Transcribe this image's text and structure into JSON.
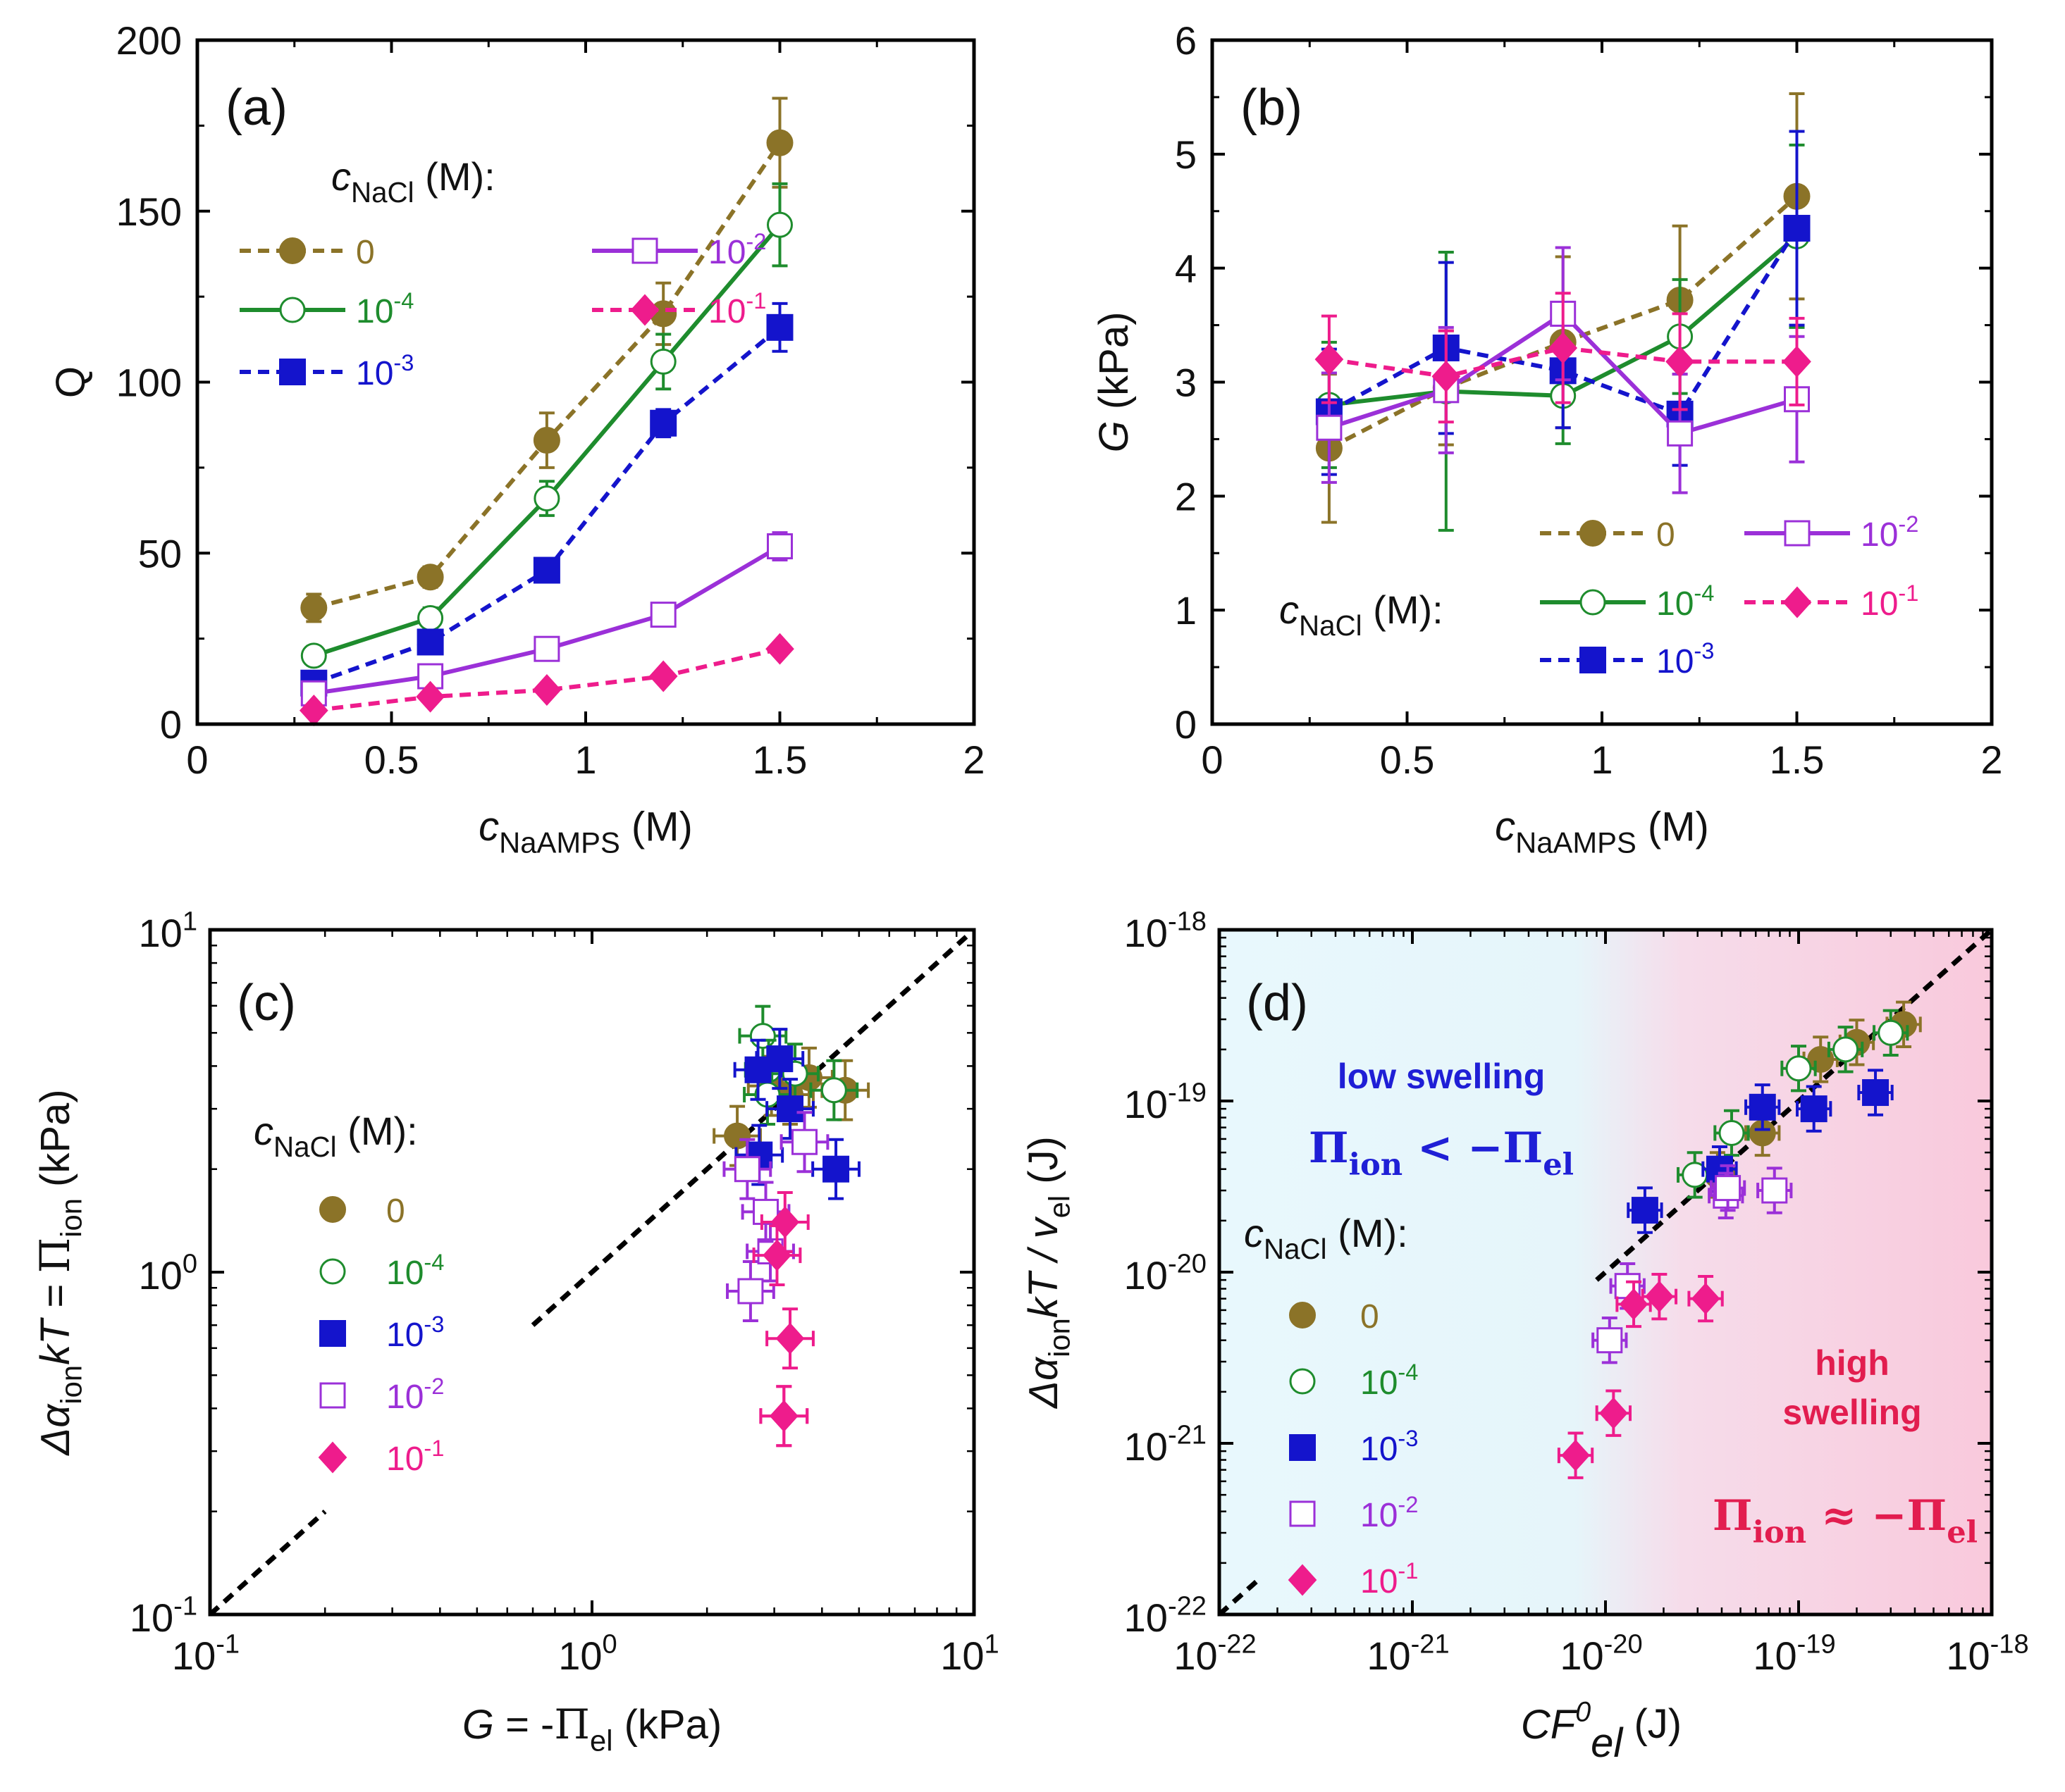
{
  "colors": {
    "s0": "#8B7328",
    "s1": "#1E8C2D",
    "s2": "#1414CC",
    "s3": "#9B30D8",
    "s4": "#EE1C8C",
    "blue_text": "#1F1FD6",
    "red_text": "#E21D4F"
  },
  "chart_data": [
    {
      "type": "line",
      "panel": "a",
      "panel_label": "(a)",
      "xlabel": {
        "main": "c",
        "sub": "NaAMPS",
        "unit": " (M)"
      },
      "ylabel": "Q",
      "xlim": [
        0,
        2
      ],
      "ylim": [
        0,
        200
      ],
      "xticks": [
        "0",
        "0.5",
        "1",
        "1.5",
        "2"
      ],
      "yticks": [
        "0",
        "50",
        "100",
        "150",
        "200"
      ],
      "legend_title": {
        "main": "c",
        "sub": "NaCl",
        "unit": " (M):"
      },
      "x": [
        0.3,
        0.6,
        0.9,
        1.2,
        1.5
      ],
      "series": [
        {
          "name": "0",
          "values": [
            34,
            43,
            83,
            120,
            170
          ],
          "err": [
            4,
            3,
            8,
            9,
            13
          ]
        },
        {
          "name": "10^-4",
          "values": [
            20,
            31,
            66,
            106,
            146
          ],
          "err": [
            2,
            3,
            5,
            8,
            12
          ]
        },
        {
          "name": "10^-3",
          "values": [
            12,
            24,
            45,
            88,
            116
          ],
          "err": [
            2,
            2,
            2,
            4,
            7
          ]
        },
        {
          "name": "10^-2",
          "values": [
            9,
            14,
            22,
            32,
            52
          ],
          "err": [
            1,
            1,
            1,
            1,
            4
          ]
        },
        {
          "name": "10^-1",
          "values": [
            4,
            8,
            10,
            14,
            22
          ],
          "err": [
            0.5,
            0.5,
            0.5,
            0.5,
            1
          ]
        }
      ]
    },
    {
      "type": "line",
      "panel": "b",
      "panel_label": "(b)",
      "xlabel": {
        "main": "c",
        "sub": "NaAMPS",
        "unit": " (M)"
      },
      "ylabel": {
        "main": "G",
        "unit": " (kPa)"
      },
      "xlim": [
        0,
        2
      ],
      "ylim": [
        0,
        6
      ],
      "xticks": [
        "0",
        "0.5",
        "1",
        "1.5",
        "2"
      ],
      "yticks": [
        "0",
        "1",
        "2",
        "3",
        "4",
        "5",
        "6"
      ],
      "legend_title": {
        "main": "c",
        "sub": "NaCl",
        "unit": " (M):"
      },
      "x": [
        0.3,
        0.6,
        0.9,
        1.2,
        1.5
      ],
      "series": [
        {
          "name": "0",
          "values": [
            2.42,
            2.95,
            3.35,
            3.72,
            4.63
          ],
          "err": [
            0.65,
            0.5,
            0.75,
            0.65,
            0.9
          ]
        },
        {
          "name": "10^-4",
          "values": [
            2.8,
            2.92,
            2.88,
            3.4,
            4.28
          ],
          "err": [
            0.55,
            1.22,
            0.42,
            0.5,
            0.8
          ]
        },
        {
          "name": "10^-3",
          "values": [
            2.74,
            3.3,
            3.1,
            2.72,
            4.35
          ],
          "err": [
            0.55,
            0.75,
            0.5,
            0.45,
            0.85
          ]
        },
        {
          "name": "10^-2",
          "values": [
            2.6,
            2.93,
            3.6,
            2.55,
            2.85
          ],
          "err": [
            0.48,
            0.55,
            0.58,
            0.52,
            0.55
          ]
        },
        {
          "name": "10^-1",
          "values": [
            3.2,
            3.05,
            3.3,
            3.18,
            3.18
          ],
          "err": [
            0.38,
            0.4,
            0.48,
            0.42,
            0.38
          ]
        }
      ]
    },
    {
      "type": "scatter",
      "panel": "c",
      "panel_label": "(c)",
      "xlabel": {
        "main": "G",
        "mid": " = -",
        "greek": "Π",
        "sub": "el",
        "unit": " (kPa)"
      },
      "ylabel": {
        "pre": "Δα",
        "sub": "ion",
        "main": "kT = ",
        "greek": "Π",
        "sub2": "ion",
        "unit": " (kPa)"
      },
      "scale": "log",
      "xlim": [
        0.1,
        10
      ],
      "ylim": [
        0.1,
        10
      ],
      "xticks": [
        {
          "base": "10",
          "exp": "-1"
        },
        {
          "base": "10",
          "exp": "0"
        },
        {
          "base": "10",
          "exp": "1"
        }
      ],
      "yticks": [
        {
          "base": "10",
          "exp": "-1"
        },
        {
          "base": "10",
          "exp": "0"
        },
        {
          "base": "10",
          "exp": "1"
        }
      ],
      "legend_title": {
        "main": "c",
        "sub": "NaCl",
        "unit": " (M):"
      },
      "reference_line": "y = x",
      "series": [
        {
          "name": "0",
          "points": [
            [
              2.4,
              2.5
            ],
            [
              2.95,
              3.5
            ],
            [
              3.3,
              3.3
            ],
            [
              3.7,
              3.7
            ],
            [
              4.6,
              3.4
            ]
          ]
        },
        {
          "name": "10^-4",
          "points": [
            [
              2.8,
              4.9
            ],
            [
              2.9,
              3.9
            ],
            [
              2.88,
              3.3
            ],
            [
              3.4,
              3.8
            ],
            [
              4.3,
              3.4
            ]
          ]
        },
        {
          "name": "10^-3",
          "points": [
            [
              2.74,
              2.2
            ],
            [
              3.3,
              3.0
            ],
            [
              3.1,
              4.2
            ],
            [
              2.72,
              3.9
            ],
            [
              4.35,
              2.0
            ]
          ]
        },
        {
          "name": "10^-2",
          "points": [
            [
              2.6,
              0.88
            ],
            [
              2.93,
              1.15
            ],
            [
              3.6,
              2.4
            ],
            [
              2.55,
              2.0
            ],
            [
              2.85,
              1.5
            ]
          ]
        },
        {
          "name": "10^-1",
          "points": [
            [
              3.2,
              1.4
            ],
            [
              3.05,
              1.12
            ],
            [
              3.3,
              0.64
            ],
            [
              3.18,
              0.38
            ],
            [
              3.18,
              0.38
            ]
          ]
        }
      ]
    },
    {
      "type": "scatter",
      "panel": "d",
      "panel_label": "(d)",
      "xlabel": {
        "main": "CF",
        "sup": "0",
        "sub": "el",
        "unit": " (J)"
      },
      "ylabel": {
        "pre": "Δα",
        "sub": "ion",
        "main": "kT / v",
        "sub2": "el",
        "unit": " (J)"
      },
      "scale": "log",
      "xlim": [
        1e-22,
        1e-18
      ],
      "ylim": [
        1e-22,
        1e-18
      ],
      "xticks": [
        {
          "base": "10",
          "exp": "-22"
        },
        {
          "base": "10",
          "exp": "-21"
        },
        {
          "base": "10",
          "exp": "-20"
        },
        {
          "base": "10",
          "exp": "-19"
        },
        {
          "base": "10",
          "exp": "-18"
        }
      ],
      "yticks": [
        {
          "base": "10",
          "exp": "-22"
        },
        {
          "base": "10",
          "exp": "-21"
        },
        {
          "base": "10",
          "exp": "-20"
        },
        {
          "base": "10",
          "exp": "-19"
        },
        {
          "base": "10",
          "exp": "-18"
        }
      ],
      "legend_title": {
        "main": "c",
        "sub": "NaCl",
        "unit": " (M):"
      },
      "reference_line": "y = x",
      "annotations": {
        "low_swelling": "low swelling",
        "low_relation": {
          "a": "Π",
          "a_sub": "ion",
          "op": " < −",
          "b": "Π",
          "b_sub": "el"
        },
        "high_swelling_1": "high",
        "high_swelling_2": "swelling",
        "high_relation": {
          "a": "Π",
          "a_sub": "ion",
          "op": " ≈ −",
          "b": "Π",
          "b_sub": "el"
        }
      },
      "series": [
        {
          "name": "0",
          "points": [
            [
              3.8e-20,
              3.7e-20
            ],
            [
              6.5e-20,
              6.5e-20
            ],
            [
              1.3e-19,
              1.75e-19
            ],
            [
              2e-19,
              2.2e-19
            ],
            [
              3.5e-19,
              2.8e-19
            ]
          ]
        },
        {
          "name": "10^-4",
          "points": [
            [
              2.9e-20,
              3.7e-20
            ],
            [
              4.5e-20,
              6.5e-20
            ],
            [
              1e-19,
              1.55e-19
            ],
            [
              1.75e-19,
              2e-19
            ],
            [
              3e-19,
              2.5e-19
            ]
          ]
        },
        {
          "name": "10^-3",
          "points": [
            [
              1.6e-20,
              2.3e-20
            ],
            [
              3.9e-20,
              4e-20
            ],
            [
              6.5e-20,
              9.2e-20
            ],
            [
              1.2e-19,
              9e-20
            ],
            [
              2.5e-19,
              1.12e-19
            ]
          ]
        },
        {
          "name": "10^-2",
          "points": [
            [
              1.05e-20,
              4e-21
            ],
            [
              1.3e-20,
              8.3e-21
            ],
            [
              4.2e-20,
              2.8e-20
            ],
            [
              4.3e-20,
              3.1e-20
            ],
            [
              7.5e-20,
              3e-20
            ]
          ]
        },
        {
          "name": "10^-1",
          "points": [
            [
              7e-21,
              8.5e-22
            ],
            [
              1.1e-20,
              1.5e-21
            ],
            [
              1.4e-20,
              6.5e-21
            ],
            [
              1.9e-20,
              7.2e-21
            ],
            [
              3.3e-20,
              7e-21
            ]
          ]
        }
      ]
    }
  ],
  "legend_labels": [
    {
      "base": "0",
      "exp": ""
    },
    {
      "base": "10",
      "exp": "-4"
    },
    {
      "base": "10",
      "exp": "-3"
    },
    {
      "base": "10",
      "exp": "-2"
    },
    {
      "base": "10",
      "exp": "-1"
    }
  ]
}
